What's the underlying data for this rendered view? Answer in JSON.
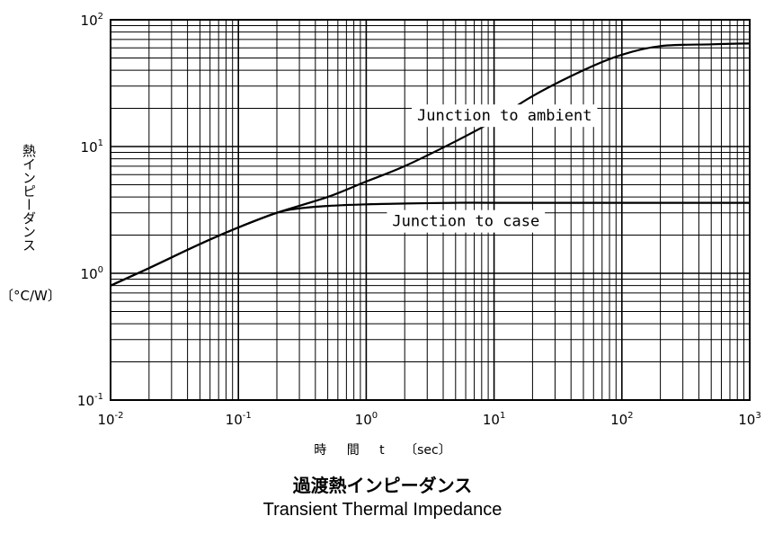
{
  "chart_data": {
    "type": "line",
    "x_scale": "log",
    "y_scale": "log",
    "xlim": [
      0.01,
      1000
    ],
    "ylim": [
      0.1,
      100
    ],
    "grid": true,
    "x_ticks": [
      {
        "base": "10",
        "exp": "-2",
        "value": 0.01
      },
      {
        "base": "10",
        "exp": "-1",
        "value": 0.1
      },
      {
        "base": "10",
        "exp": "0",
        "value": 1
      },
      {
        "base": "10",
        "exp": "1",
        "value": 10
      },
      {
        "base": "10",
        "exp": "2",
        "value": 100
      },
      {
        "base": "10",
        "exp": "3",
        "value": 1000
      }
    ],
    "y_ticks": [
      {
        "base": "10",
        "exp": "-1",
        "value": 0.1
      },
      {
        "base": "10",
        "exp": "0",
        "value": 1
      },
      {
        "base": "10",
        "exp": "1",
        "value": 10
      },
      {
        "base": "10",
        "exp": "2",
        "value": 100
      }
    ],
    "ylabel_jp": "熱インピーダンス",
    "yunit": "〔°C/W〕",
    "xlabel": "時 間 t 〔sec〕",
    "title_jp": "過渡熱インピーダンス",
    "title_en": "Transient Thermal Impedance",
    "series": [
      {
        "name": "Junction to ambient",
        "x": [
          0.01,
          0.02,
          0.05,
          0.1,
          0.2,
          0.5,
          1,
          2,
          5,
          10,
          20,
          50,
          100,
          200,
          500,
          1000
        ],
        "y": [
          0.8,
          1.1,
          1.7,
          2.3,
          3.0,
          4.0,
          5.3,
          7.0,
          11,
          16,
          25,
          40,
          53,
          62,
          64,
          65
        ]
      },
      {
        "name": "Junction to case",
        "x": [
          0.01,
          0.02,
          0.05,
          0.1,
          0.2,
          0.3,
          0.5,
          1,
          2,
          5,
          10,
          100,
          1000
        ],
        "y": [
          0.8,
          1.1,
          1.7,
          2.3,
          3.0,
          3.25,
          3.4,
          3.5,
          3.55,
          3.6,
          3.6,
          3.6,
          3.6
        ]
      }
    ]
  }
}
